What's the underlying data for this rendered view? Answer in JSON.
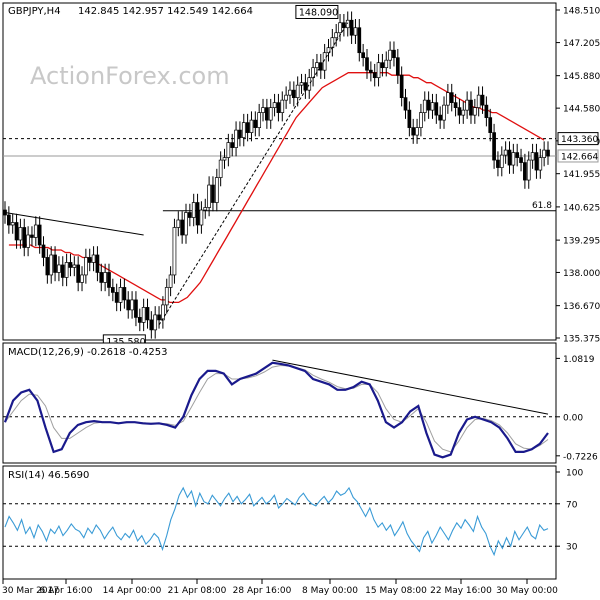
{
  "chart_data": {
    "type": "candlestick",
    "symbol_label": "GBPJPY,H4",
    "ohlc_label": "142.845 142.957 142.549 142.664",
    "watermark": "ActionForex.com",
    "x_ticks": [
      "30 Mar 2017",
      "6 Apr 16:00",
      "14 Apr 00:00",
      "21 Apr 08:00",
      "28 Apr 16:00",
      "8 May 00:00",
      "15 May 08:00",
      "22 May 16:00",
      "30 May 00:00"
    ],
    "price_panel": {
      "y_ticks": [
        "148.510",
        "147.205",
        "145.880",
        "144.580",
        "143.270",
        "141.955",
        "140.625",
        "139.295",
        "138.000",
        "136.670",
        "135.375"
      ],
      "ylim": [
        135.375,
        148.51
      ],
      "close": [
        140.3,
        139.9,
        140.0,
        139.3,
        139.8,
        139.0,
        139.5,
        139.4,
        139.9,
        139.1,
        138.6,
        137.9,
        138.7,
        138.0,
        138.3,
        137.8,
        138.4,
        138.2,
        138.3,
        137.6,
        137.9,
        138.6,
        138.4,
        138.7,
        138.0,
        137.6,
        138.0,
        137.4,
        137.2,
        136.8,
        137.4,
        136.9,
        136.5,
        136.9,
        136.2,
        136.0,
        136.6,
        136.1,
        135.7,
        136.3,
        136.1,
        136.7,
        137.4,
        137.9,
        139.8,
        140.1,
        139.5,
        140.4,
        140.2,
        140.8,
        139.9,
        140.5,
        140.6,
        141.5,
        140.8,
        141.8,
        142.5,
        142.6,
        143.2,
        143.0,
        143.7,
        143.4,
        144.0,
        143.6,
        144.1,
        143.8,
        144.4,
        144.6,
        144.1,
        144.6,
        144.8,
        144.4,
        144.9,
        145.1,
        145.3,
        145.0,
        145.5,
        145.6,
        145.3,
        145.8,
        146.2,
        146.4,
        146.1,
        146.8,
        147.0,
        147.4,
        147.6,
        148.0,
        147.8,
        148.1,
        147.5,
        147.8,
        146.8,
        146.6,
        146.1,
        146.0,
        145.8,
        146.4,
        146.2,
        146.5,
        146.9,
        146.6,
        145.9,
        145.0,
        144.5,
        143.8,
        143.5,
        143.8,
        144.4,
        144.9,
        144.5,
        144.8,
        144.3,
        144.1,
        144.7,
        145.2,
        144.8,
        144.6,
        144.3,
        144.5,
        144.9,
        144.3,
        144.6,
        145.1,
        144.7,
        144.2,
        143.6,
        142.5,
        142.2,
        142.7,
        142.9,
        142.3,
        142.8,
        142.6,
        142.4,
        141.7,
        142.5,
        142.8,
        142.1,
        142.6,
        142.9,
        142.66
      ],
      "ma_label": "EMA 55 (red line)",
      "ma": [
        139.1,
        139.1,
        139.1,
        139.1,
        139.1,
        139.1,
        139.0,
        139.0,
        139.0,
        139.0,
        138.9,
        138.9,
        138.9,
        138.8,
        138.8,
        138.7,
        138.7,
        138.6,
        138.6,
        138.5,
        138.4,
        138.3,
        138.2,
        138.1,
        138.0,
        137.9,
        137.8,
        137.7,
        137.6,
        137.5,
        137.4,
        137.3,
        137.2,
        137.1,
        137.0,
        136.9,
        136.9,
        136.8,
        136.8,
        136.8,
        136.9,
        137.0,
        137.2,
        137.4,
        137.6,
        137.9,
        138.2,
        138.5,
        138.8,
        139.1,
        139.4,
        139.7,
        140.0,
        140.3,
        140.6,
        140.9,
        141.2,
        141.5,
        141.8,
        142.1,
        142.4,
        142.7,
        143.0,
        143.3,
        143.6,
        143.9,
        144.2,
        144.4,
        144.6,
        144.8,
        145.0,
        145.2,
        145.4,
        145.5,
        145.6,
        145.7,
        145.8,
        145.9,
        146.0,
        146.0,
        146.0,
        146.0,
        146.0,
        146.0,
        146.0,
        146.0,
        146.0,
        146.0,
        145.9,
        145.9,
        145.9,
        145.9,
        145.9,
        145.8,
        145.8,
        145.7,
        145.6,
        145.6,
        145.5,
        145.4,
        145.3,
        145.2,
        145.1,
        145.0,
        144.9,
        144.8,
        144.7,
        144.6,
        144.6,
        144.5,
        144.5,
        144.4,
        144.4,
        144.3,
        144.2,
        144.1,
        144.0,
        143.9,
        143.8,
        143.7,
        143.6,
        143.5,
        143.4,
        143.3
      ],
      "ma_x_start": 1,
      "ma_x_end": 140,
      "levels": [
        {
          "value": 143.36,
          "label": "143.360",
          "style": "dashed"
        },
        {
          "value": 142.664,
          "label": "142.664",
          "style": "solid-gray"
        },
        {
          "value": 140.47,
          "label": "61.8",
          "style": "solid",
          "x_from_index": 41
        }
      ],
      "annotations": [
        {
          "label": "148.090",
          "value": 148.09,
          "index": 88
        },
        {
          "label": "135.580",
          "value": 135.58,
          "index": 38
        }
      ],
      "trendline": {
        "from": [
          0,
          140.4
        ],
        "to": [
          36,
          139.5
        ]
      },
      "channel_line": {
        "from": [
          40,
          135.9
        ],
        "to": [
          89,
          148.0
        ]
      }
    },
    "macd_panel": {
      "label": "MACD(12,26,9) -0.2618 -0.4253",
      "y_ticks": [
        "1.0819",
        "0.00",
        "-0.7226"
      ],
      "ylim": [
        -0.8,
        1.2
      ],
      "macd": [
        -0.1,
        0.3,
        0.45,
        0.5,
        0.3,
        -0.2,
        -0.65,
        -0.6,
        -0.3,
        -0.15,
        -0.1,
        -0.08,
        -0.1,
        -0.1,
        -0.12,
        -0.1,
        -0.1,
        -0.12,
        -0.13,
        -0.12,
        -0.15,
        -0.2,
        0.0,
        0.4,
        0.7,
        0.85,
        0.85,
        0.8,
        0.6,
        0.7,
        0.75,
        0.8,
        0.9,
        1.0,
        0.98,
        0.95,
        0.9,
        0.85,
        0.7,
        0.65,
        0.6,
        0.5,
        0.5,
        0.55,
        0.65,
        0.6,
        0.3,
        -0.1,
        -0.2,
        -0.1,
        0.1,
        0.2,
        -0.3,
        -0.7,
        -0.75,
        -0.7,
        -0.3,
        -0.05,
        0.0,
        -0.05,
        -0.1,
        -0.2,
        -0.4,
        -0.65,
        -0.65,
        -0.6,
        -0.5,
        -0.3
      ],
      "signal": [
        -0.1,
        0.1,
        0.3,
        0.42,
        0.4,
        0.2,
        -0.2,
        -0.4,
        -0.4,
        -0.3,
        -0.2,
        -0.12,
        -0.1,
        -0.1,
        -0.11,
        -0.11,
        -0.1,
        -0.11,
        -0.12,
        -0.12,
        -0.13,
        -0.16,
        -0.08,
        0.18,
        0.45,
        0.7,
        0.8,
        0.8,
        0.7,
        0.7,
        0.72,
        0.76,
        0.83,
        0.92,
        0.95,
        0.94,
        0.91,
        0.87,
        0.77,
        0.7,
        0.64,
        0.56,
        0.52,
        0.53,
        0.6,
        0.6,
        0.45,
        0.15,
        -0.05,
        -0.1,
        0.02,
        0.15,
        -0.1,
        -0.45,
        -0.6,
        -0.65,
        -0.45,
        -0.2,
        -0.05,
        -0.03,
        -0.07,
        -0.15,
        -0.3,
        -0.5,
        -0.58,
        -0.6,
        -0.53,
        -0.42
      ],
      "trendline": {
        "from": [
          33,
          1.05
        ],
        "to": [
          67,
          0.05
        ]
      }
    },
    "rsi_panel": {
      "label": "RSI(14) 46.5690",
      "y_ticks": [
        "100",
        "70",
        "30",
        "0"
      ],
      "ylim": [
        0,
        100
      ],
      "levels": [
        70,
        30
      ],
      "rsi": [
        48,
        58,
        52,
        45,
        55,
        42,
        48,
        38,
        50,
        44,
        35,
        46,
        42,
        49,
        40,
        45,
        51,
        46,
        44,
        38,
        47,
        42,
        50,
        45,
        37,
        43,
        48,
        40,
        36,
        42,
        38,
        45,
        35,
        40,
        32,
        36,
        42,
        38,
        27,
        40,
        55,
        65,
        78,
        85,
        76,
        82,
        68,
        80,
        72,
        70,
        78,
        73,
        68,
        75,
        80,
        72,
        77,
        70,
        74,
        79,
        68,
        72,
        76,
        70,
        73,
        78,
        66,
        70,
        75,
        72,
        69,
        76,
        80,
        74,
        70,
        68,
        73,
        77,
        71,
        75,
        82,
        78,
        80,
        85,
        76,
        72,
        65,
        58,
        66,
        55,
        48,
        52,
        45,
        50,
        40,
        46,
        53,
        42,
        35,
        30,
        25,
        38,
        44,
        33,
        40,
        48,
        42,
        36,
        45,
        52,
        47,
        55,
        50,
        44,
        58,
        48,
        42,
        30,
        22,
        35,
        28,
        38,
        30,
        44,
        36,
        42,
        48,
        40,
        37,
        50,
        45,
        46.6
      ],
      "x_start": 0,
      "x_end": 140
    }
  }
}
